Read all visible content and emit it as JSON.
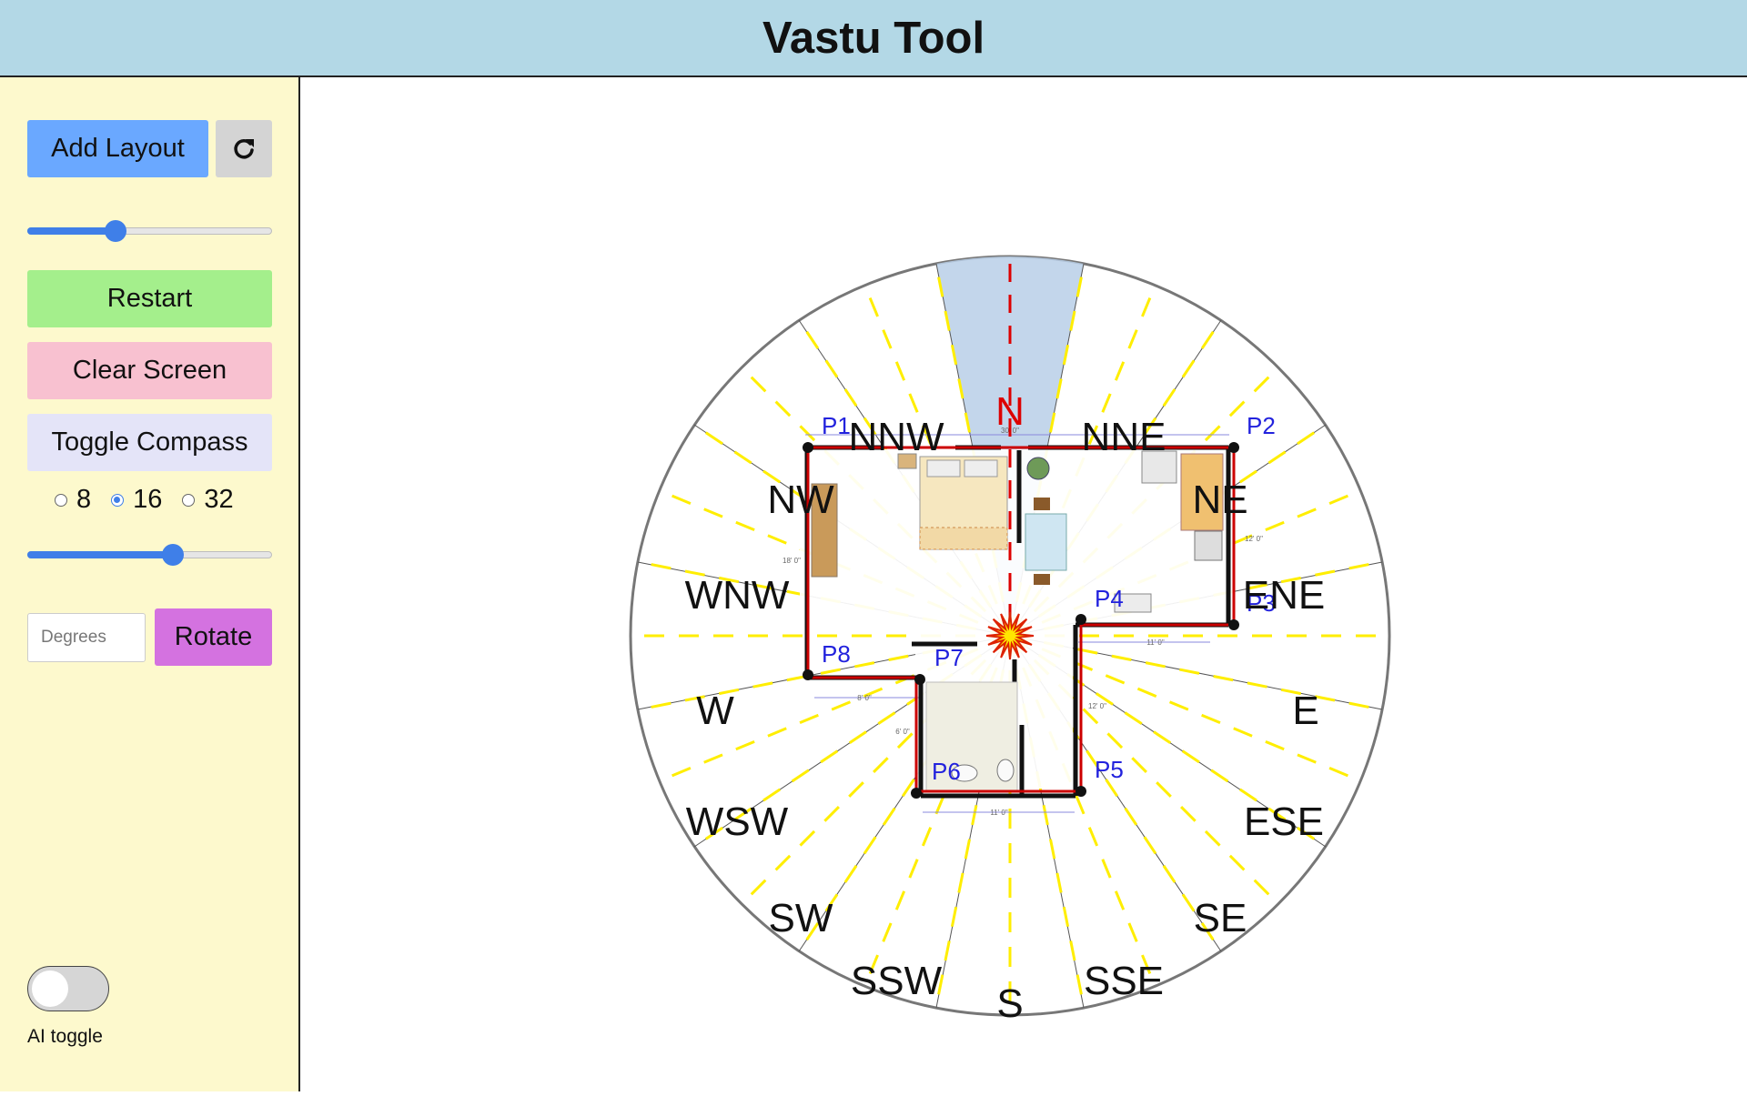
{
  "header": {
    "title": "Vastu Tool"
  },
  "sidebar": {
    "add_layout_label": "Add Layout",
    "refresh_icon": "refresh-icon",
    "zoom_slider_value": 0.36,
    "restart_label": "Restart",
    "clear_label": "Clear Screen",
    "toggle_compass_label": "Toggle Compass",
    "divisions": {
      "options": [
        "8",
        "16",
        "32"
      ],
      "selected": "16"
    },
    "size_slider_value": 0.595,
    "degrees_placeholder": "Degrees",
    "rotate_label": "Rotate",
    "ai_toggle_label": "AI toggle",
    "ai_toggle_on": false
  },
  "colors": {
    "header_bg": "#b3d8e6",
    "sidebar_bg": "#fdf9cd",
    "add_layout": "#6aa8ff",
    "restart": "#a4ef8c",
    "clear_screen": "#f8c1d0",
    "toggle_compass": "#e4e4f8",
    "rotate": "#d472e0",
    "north_marker": "#dd0000",
    "ray": "#ffee00",
    "boundary": "#cc0000",
    "point_label": "#2222dd"
  },
  "compass": {
    "north_label": "N",
    "directions": [
      "NNE",
      "NE",
      "ENE",
      "E",
      "ESE",
      "SE",
      "SSE",
      "S",
      "SSW",
      "SW",
      "WSW",
      "W",
      "WNW",
      "NW",
      "NNW"
    ]
  },
  "layout": {
    "points": [
      "P1",
      "P2",
      "P3",
      "P4",
      "P5",
      "P6",
      "P7",
      "P8"
    ],
    "dimensions": [
      "30' 0\"",
      "11' 0\"",
      "8' 0\"",
      "11' 0\"",
      "18' 0\"",
      "12' 0\"",
      "6' 0\"",
      "12' 0\""
    ]
  }
}
